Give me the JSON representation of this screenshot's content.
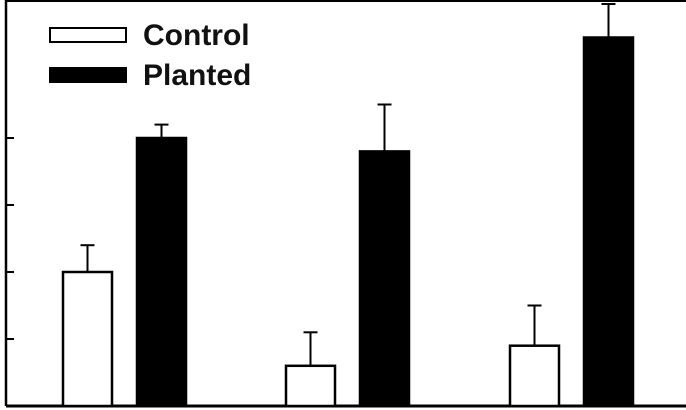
{
  "chart_data": {
    "type": "bar",
    "title": "",
    "xlabel": "",
    "ylabel": "",
    "categories": [
      "",
      "",
      ""
    ],
    "ylim": [
      0,
      6
    ],
    "series": [
      {
        "name": "Control",
        "fill": "#ffffff",
        "stroke": "#000000",
        "values": [
          2.0,
          0.6,
          0.9
        ],
        "errors": [
          0.4,
          0.5,
          0.6
        ]
      },
      {
        "name": "Planted",
        "fill": "#000000",
        "stroke": "#000000",
        "values": [
          4.0,
          3.8,
          5.5
        ],
        "errors": [
          0.2,
          0.7,
          0.5
        ]
      }
    ],
    "y_ticks": [
      1,
      2,
      3,
      4
    ],
    "legend": {
      "placement": "top-left"
    },
    "grid": false
  }
}
